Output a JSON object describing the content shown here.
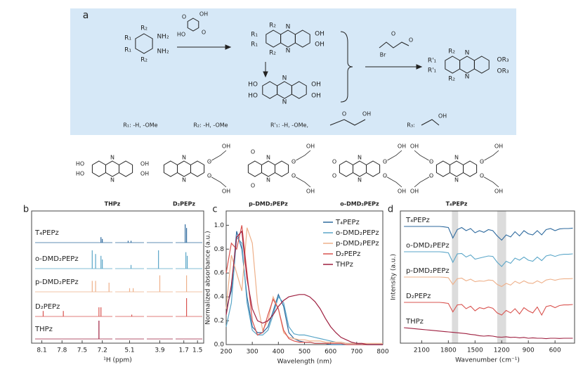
{
  "scheme": {
    "panel_label": "a",
    "reactant": [
      "R₂",
      "R₁",
      "R₁",
      "R₂",
      "NH₂",
      "NH₂"
    ],
    "reagent1": [
      "OH",
      "O",
      "O",
      "HO"
    ],
    "intermediate1": [
      "R₂",
      "R₁",
      "R₁",
      "R₂",
      "N",
      "N",
      "OH",
      "OH"
    ],
    "intermediate2": [
      "HO",
      "HO",
      "N",
      "N",
      "OH",
      "OH"
    ],
    "reagent2": [
      "Br",
      "O",
      "O"
    ],
    "product": [
      "R₂",
      "R'₁",
      "R'₁",
      "R₂",
      "N",
      "N",
      "OR₃",
      "OR₃"
    ],
    "substituents": [
      "R₁: -H, -OMe",
      "R₂: -H, -OMe",
      "R'₁: -H, -OMe,",
      "O",
      "OH",
      "R₃:",
      "OH"
    ],
    "compounds": [
      {
        "name": "THPz",
        "labels": [
          "HO",
          "HO",
          "N",
          "N",
          "OH",
          "OH"
        ]
      },
      {
        "name": "D₂PEPz",
        "labels": [
          "N",
          "N",
          "O",
          "O",
          "OH",
          "OH"
        ]
      },
      {
        "name": "p-DMD₂PEPz",
        "labels": [
          "O",
          "O",
          "N",
          "N",
          "O",
          "O",
          "OH",
          "OH"
        ]
      },
      {
        "name": "o-DMD₂PEPz",
        "labels": [
          "O",
          "O",
          "N",
          "N",
          "O",
          "O",
          "OH",
          "OH"
        ]
      },
      {
        "name": "T₄PEPz",
        "labels": [
          "OH",
          "O",
          "O",
          "OH",
          "N",
          "N",
          "O",
          "O",
          "OH",
          "OH"
        ]
      }
    ]
  },
  "chart_data": [
    {
      "type": "nmr",
      "panel_label": "b",
      "x_label": "¹H (ppm)",
      "segments": [
        {
          "xlim": [
            8.2,
            7.05
          ],
          "xticks": [
            8.1,
            7.8,
            7.5,
            7.2
          ]
        },
        {
          "xlim": [
            5.3,
            4.9
          ],
          "xticks": [
            5.1
          ]
        },
        {
          "xlim": [
            4.1,
            3.7
          ],
          "xticks": [
            3.9
          ]
        },
        {
          "xlim": [
            1.82,
            1.43
          ],
          "xticks": [
            1.7,
            1.5
          ]
        }
      ],
      "series": [
        {
          "name": "T₄PEPz",
          "color": "#2e6a9e",
          "x": [
            7.22,
            7.2,
            5.12,
            5.08,
            1.68,
            1.66
          ],
          "values": [
            0.3,
            0.2,
            0.1,
            0.1,
            1,
            0.8
          ]
        },
        {
          "name": "o-DMD₂PEPz",
          "color": "#5aa6c8",
          "x": [
            7.35,
            7.3,
            7.22,
            7.2,
            5.08,
            3.92,
            1.67,
            1.65
          ],
          "values": [
            1,
            0.8,
            0.7,
            0.5,
            0.2,
            1,
            0.9,
            0.7
          ]
        },
        {
          "name": "p-DMD₂PEPz",
          "color": "#eeb08a",
          "x": [
            7.35,
            7.3,
            7.1,
            5.1,
            5.05,
            3.9,
            1.66
          ],
          "values": [
            0.6,
            0.6,
            0.5,
            0.2,
            0.2,
            0.9,
            0.9
          ]
        },
        {
          "name": "D₂PEPz",
          "color": "#d9534f",
          "x": [
            8.08,
            7.78,
            7.25,
            7.22,
            5.07,
            1.66
          ],
          "values": [
            0.3,
            0.3,
            0.5,
            0.5,
            0.1,
            1
          ]
        },
        {
          "name": "THPz",
          "color": "#9e1f3f",
          "x": [
            7.25
          ],
          "values": [
            1
          ]
        }
      ]
    },
    {
      "type": "line",
      "panel_label": "c",
      "x_label": "Wavelength (nm)",
      "y_label": "Normalized absorbance (a.u.)",
      "xlim": [
        200,
        800
      ],
      "xticks": [
        200,
        300,
        400,
        500,
        600,
        700,
        800
      ],
      "ylim": [
        0,
        1.12
      ],
      "yticks": [
        {
          "value": 0,
          "label": "0.0"
        },
        0.2,
        0.4,
        0.6,
        0.8,
        {
          "value": 1,
          "label": "1.0"
        }
      ],
      "legend": "upper right",
      "x": [
        200,
        220,
        240,
        260,
        280,
        300,
        320,
        340,
        360,
        380,
        400,
        420,
        440,
        460,
        480,
        500,
        520,
        540,
        560,
        580,
        600,
        620,
        640,
        660,
        680,
        700,
        720,
        740,
        760,
        780,
        800
      ],
      "series": [
        {
          "name": "T₄PEPz",
          "color": "#2e6a9e",
          "values": [
            0.3,
            0.45,
            0.95,
            0.8,
            0.4,
            0.15,
            0.1,
            0.1,
            0.15,
            0.28,
            0.42,
            0.32,
            0.1,
            0.05,
            0.03,
            0.02,
            0.02,
            0.01,
            0.01,
            0.01,
            0,
            0,
            0,
            0,
            0,
            0,
            0,
            0,
            0,
            0,
            0
          ]
        },
        {
          "name": "o-DMD₂PEPz",
          "color": "#5aa6c8",
          "values": [
            0.15,
            0.35,
            0.9,
            0.85,
            0.35,
            0.12,
            0.08,
            0.08,
            0.12,
            0.25,
            0.4,
            0.35,
            0.15,
            0.09,
            0.08,
            0.08,
            0.07,
            0.06,
            0.05,
            0.04,
            0.03,
            0.02,
            0.02,
            0.01,
            0.01,
            0.01,
            0,
            0,
            0,
            0,
            0
          ]
        },
        {
          "name": "p-DMD₂PEPz",
          "color": "#eeb08a",
          "values": [
            0.3,
            0.75,
            0.6,
            0.45,
            0.98,
            0.85,
            0.35,
            0.12,
            0.2,
            0.4,
            0.3,
            0.1,
            0.06,
            0.05,
            0.04,
            0.04,
            0.03,
            0.03,
            0.03,
            0.02,
            0.02,
            0.02,
            0.02,
            0.01,
            0.01,
            0.01,
            0.01,
            0.01,
            0.01,
            0.01,
            0.01
          ]
        },
        {
          "name": "D₂PEPz",
          "color": "#d9534f",
          "values": [
            0.6,
            0.85,
            0.8,
            1.0,
            0.6,
            0.2,
            0.08,
            0.1,
            0.25,
            0.38,
            0.3,
            0.12,
            0.05,
            0.03,
            0.02,
            0.02,
            0.02,
            0.01,
            0.01,
            0.01,
            0.01,
            0.01,
            0.01,
            0,
            0,
            0,
            0,
            0,
            0,
            0,
            0
          ]
        },
        {
          "name": "THPz",
          "color": "#9e1f3f",
          "values": [
            0.25,
            0.5,
            0.9,
            0.95,
            0.55,
            0.3,
            0.2,
            0.18,
            0.2,
            0.25,
            0.32,
            0.37,
            0.4,
            0.41,
            0.42,
            0.42,
            0.4,
            0.36,
            0.3,
            0.22,
            0.15,
            0.1,
            0.06,
            0.04,
            0.02,
            0.01,
            0.01,
            0,
            0,
            0,
            0
          ]
        }
      ]
    },
    {
      "type": "ftir",
      "panel_label": "d",
      "x_label": "Wavenumber (cm⁻¹)",
      "y_label": "Intensity (a.u.)",
      "xlim": [
        2340,
        380
      ],
      "xticks": [
        2100,
        1800,
        1500,
        1200,
        900,
        600
      ],
      "bands": [
        [
          1760,
          1690
        ],
        [
          1250,
          1150
        ]
      ],
      "band_color": "#dcdcdc",
      "x": [
        2300,
        2250,
        2200,
        2150,
        2100,
        2050,
        2000,
        1950,
        1900,
        1850,
        1800,
        1750,
        1700,
        1650,
        1600,
        1550,
        1500,
        1450,
        1400,
        1350,
        1300,
        1250,
        1200,
        1150,
        1100,
        1050,
        1000,
        950,
        900,
        850,
        800,
        750,
        700,
        650,
        600,
        550,
        500,
        450,
        400
      ],
      "series": [
        {
          "name": "T₄PEPz",
          "color": "#2e6a9e",
          "values": [
            1,
            1,
            1,
            1,
            1,
            1,
            1,
            1,
            1,
            0.98,
            0.95,
            0.45,
            0.85,
            0.95,
            0.8,
            0.9,
            0.7,
            0.8,
            0.72,
            0.85,
            0.8,
            0.55,
            0.35,
            0.6,
            0.5,
            0.75,
            0.55,
            0.8,
            0.65,
            0.6,
            0.8,
            0.6,
            0.85,
            0.9,
            0.8,
            0.88,
            0.9,
            0.9,
            0.92
          ]
        },
        {
          "name": "o-DMD₂PEPz",
          "color": "#5aa6c8",
          "values": [
            1,
            1,
            1,
            1,
            1,
            1,
            1,
            1,
            1,
            0.98,
            0.95,
            0.5,
            0.9,
            0.92,
            0.75,
            0.85,
            0.65,
            0.7,
            0.75,
            0.8,
            0.78,
            0.5,
            0.3,
            0.55,
            0.45,
            0.7,
            0.6,
            0.75,
            0.6,
            0.55,
            0.75,
            0.58,
            0.8,
            0.85,
            0.78,
            0.85,
            0.88,
            0.88,
            0.9
          ]
        },
        {
          "name": "p-DMD₂PEPz",
          "color": "#eeb08a",
          "values": [
            1,
            1,
            1,
            1,
            1,
            1,
            1,
            1,
            1,
            0.99,
            0.97,
            0.65,
            0.92,
            0.95,
            0.82,
            0.9,
            0.78,
            0.82,
            0.8,
            0.86,
            0.84,
            0.65,
            0.55,
            0.7,
            0.62,
            0.8,
            0.7,
            0.82,
            0.72,
            0.7,
            0.82,
            0.72,
            0.86,
            0.9,
            0.85,
            0.9,
            0.92,
            0.92,
            0.93
          ]
        },
        {
          "name": "D₂PEPz",
          "color": "#d9534f",
          "values": [
            1,
            1,
            1,
            1,
            1,
            1,
            1,
            1,
            1,
            0.98,
            0.95,
            0.55,
            0.88,
            0.9,
            0.7,
            0.82,
            0.6,
            0.75,
            0.7,
            0.78,
            0.72,
            0.5,
            0.4,
            0.62,
            0.5,
            0.7,
            0.45,
            0.75,
            0.6,
            0.5,
            0.78,
            0.4,
            0.8,
            0.85,
            0.75,
            0.85,
            0.88,
            0.88,
            0.9
          ]
        },
        {
          "name": "THPz",
          "color": "#9e1f3f",
          "values": [
            1,
            0.98,
            0.96,
            0.94,
            0.92,
            0.9,
            0.88,
            0.86,
            0.84,
            0.82,
            0.8,
            0.78,
            0.76,
            0.74,
            0.72,
            0.68,
            0.66,
            0.62,
            0.6,
            0.62,
            0.6,
            0.56,
            0.55,
            0.57,
            0.54,
            0.55,
            0.52,
            0.54,
            0.5,
            0.52,
            0.5,
            0.5,
            0.48,
            0.5,
            0.5,
            0.49,
            0.5,
            0.5,
            0.5
          ]
        }
      ]
    }
  ]
}
